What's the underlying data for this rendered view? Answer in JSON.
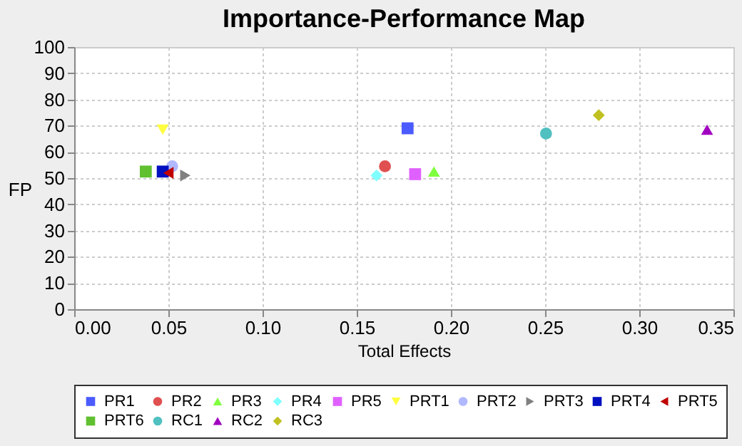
{
  "chart_data": {
    "type": "scatter",
    "title": "Importance-Performance Map",
    "xlabel": "Total Effects",
    "ylabel": "FP",
    "xlim": [
      0,
      0.35
    ],
    "xticks": [
      {
        "value": 0,
        "label": "0.00"
      },
      {
        "value": 0.05,
        "label": "0.05"
      },
      {
        "value": 0.1,
        "label": "0.10"
      },
      {
        "value": 0.15,
        "label": "0.15"
      },
      {
        "value": 0.2,
        "label": "0.20"
      },
      {
        "value": 0.25,
        "label": "0.25"
      },
      {
        "value": 0.3,
        "label": "0.30"
      },
      {
        "value": 0.35,
        "label": "0.35"
      }
    ],
    "ylim": [
      0,
      100
    ],
    "yticks": [
      0,
      10,
      20,
      30,
      40,
      50,
      60,
      70,
      80,
      90,
      100
    ],
    "grid": true,
    "legend": "bottom",
    "series": [
      {
        "name": "PR1",
        "color": "#4b5bff",
        "marker": "square",
        "x": [
          0.177
        ],
        "values": [
          69
        ]
      },
      {
        "name": "PR2",
        "color": "#e05050",
        "marker": "circle",
        "x": [
          0.165
        ],
        "values": [
          54.5
        ]
      },
      {
        "name": "PR3",
        "color": "#80ff40",
        "marker": "triangle-up",
        "x": [
          0.191
        ],
        "values": [
          52.5
        ]
      },
      {
        "name": "PR4",
        "color": "#80ffff",
        "marker": "diamond",
        "x": [
          0.1605
        ],
        "values": [
          51
        ]
      },
      {
        "name": "PR5",
        "color": "#e060ff",
        "marker": "square",
        "x": [
          0.181
        ],
        "values": [
          51.5
        ]
      },
      {
        "name": "PRT1",
        "color": "#ffff40",
        "marker": "triangle-down",
        "x": [
          0.047
        ],
        "values": [
          68.5
        ]
      },
      {
        "name": "PRT2",
        "color": "#b0b8ff",
        "marker": "circle",
        "x": [
          0.052
        ],
        "values": [
          54.5
        ]
      },
      {
        "name": "PRT3",
        "color": "#808080",
        "marker": "triangle-right",
        "x": [
          0.059
        ],
        "values": [
          51
        ]
      },
      {
        "name": "PRT4",
        "color": "#0010c0",
        "marker": "square",
        "x": [
          0.047
        ],
        "values": [
          52.5
        ]
      },
      {
        "name": "PRT5",
        "color": "#c00000",
        "marker": "triangle-left",
        "x": [
          0.05
        ],
        "values": [
          52
        ]
      },
      {
        "name": "PRT6",
        "color": "#60c030",
        "marker": "square",
        "x": [
          0.038
        ],
        "values": [
          52.5
        ]
      },
      {
        "name": "RC1",
        "color": "#50c0c0",
        "marker": "circle",
        "x": [
          0.2505
        ],
        "values": [
          67
        ]
      },
      {
        "name": "RC2",
        "color": "#a000c0",
        "marker": "triangle-up",
        "x": [
          0.336
        ],
        "values": [
          68.5
        ]
      },
      {
        "name": "RC3",
        "color": "#c0c020",
        "marker": "diamond",
        "x": [
          0.2785
        ],
        "values": [
          74
        ]
      }
    ]
  }
}
